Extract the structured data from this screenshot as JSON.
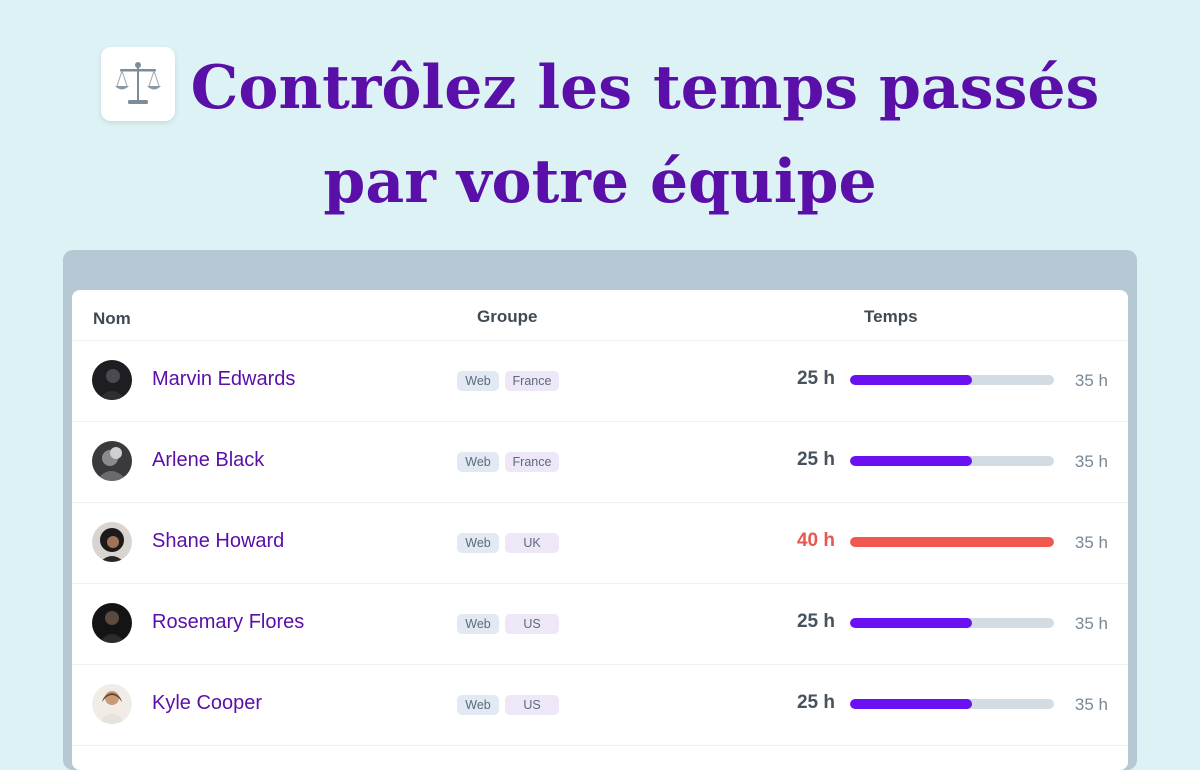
{
  "headline": {
    "line1": "Contrôlez les temps passés",
    "line2": "par votre équipe"
  },
  "app_icon": "balance-scale-icon",
  "table": {
    "headers": {
      "name": "Nom",
      "group": "Groupe",
      "time": "Temps"
    },
    "rows": [
      {
        "name": "Marvin Edwards",
        "tags": [
          "Web",
          "France"
        ],
        "hours": "25 h",
        "target": "35 h",
        "progress": 0.6,
        "over": false
      },
      {
        "name": "Arlene Black",
        "tags": [
          "Web",
          "France"
        ],
        "hours": "25 h",
        "target": "35 h",
        "progress": 0.6,
        "over": false
      },
      {
        "name": "Shane Howard",
        "tags": [
          "Web",
          "UK"
        ],
        "hours": "40 h",
        "target": "35 h",
        "progress": 1.0,
        "over": true
      },
      {
        "name": "Rosemary Flores",
        "tags": [
          "Web",
          "US"
        ],
        "hours": "25 h",
        "target": "35 h",
        "progress": 0.6,
        "over": false
      },
      {
        "name": "Kyle Cooper",
        "tags": [
          "Web",
          "US"
        ],
        "hours": "25 h",
        "target": "35 h",
        "progress": 0.6,
        "over": false
      }
    ]
  },
  "colors": {
    "accent": "#6b10f0",
    "over": "#f2574f",
    "title": "#5a0fa8",
    "background": "#dcf2f4"
  }
}
